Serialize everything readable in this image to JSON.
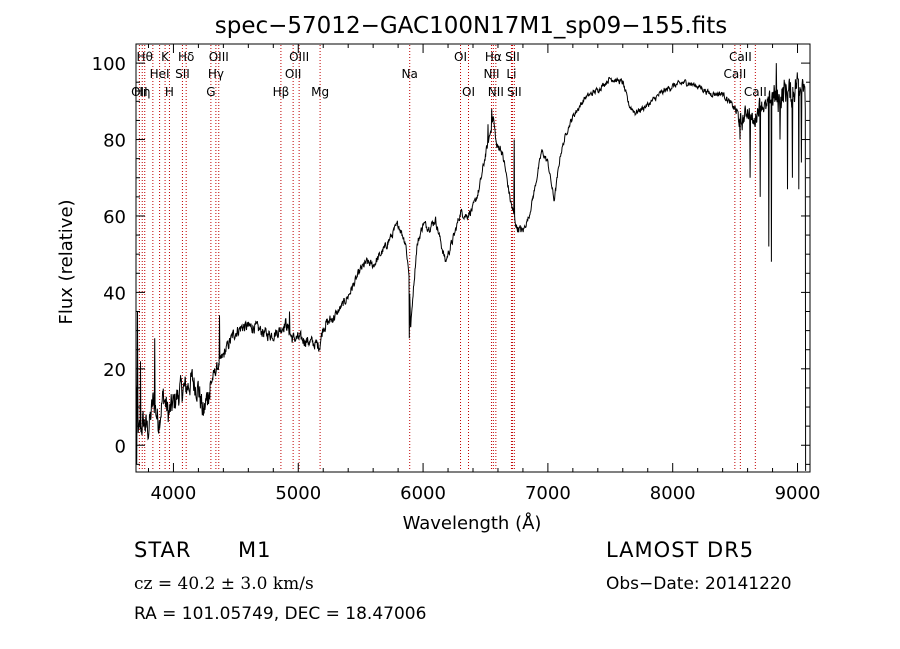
{
  "chart_data": {
    "type": "line",
    "title": "spec−57012−GAC100N17M1_sp09−155.fits",
    "xlabel": "Wavelength (Å)",
    "ylabel": "Flux (relative)",
    "xlim": [
      3700,
      9100
    ],
    "ylim": [
      -7,
      105
    ],
    "xticks": [
      4000,
      5000,
      6000,
      7000,
      8000,
      9000
    ],
    "yticks": [
      0,
      20,
      40,
      60,
      80,
      100
    ],
    "grid": false,
    "line_color": "#000000",
    "marker_color": "#c00000",
    "spectrum_anchors": [
      [
        3700,
        15
      ],
      [
        3720,
        3
      ],
      [
        3760,
        6
      ],
      [
        3800,
        4
      ],
      [
        3840,
        12
      ],
      [
        3880,
        6
      ],
      [
        3920,
        13
      ],
      [
        3960,
        8
      ],
      [
        4000,
        11
      ],
      [
        4050,
        14
      ],
      [
        4100,
        15
      ],
      [
        4150,
        17
      ],
      [
        4200,
        15
      ],
      [
        4240,
        8
      ],
      [
        4280,
        14
      ],
      [
        4330,
        19
      ],
      [
        4380,
        22
      ],
      [
        4420,
        25
      ],
      [
        4480,
        29
      ],
      [
        4550,
        31
      ],
      [
        4650,
        31
      ],
      [
        4750,
        29
      ],
      [
        4800,
        29
      ],
      [
        4850,
        30
      ],
      [
        4900,
        32
      ],
      [
        4950,
        28
      ],
      [
        5000,
        28
      ],
      [
        5100,
        27
      ],
      [
        5170,
        26
      ],
      [
        5200,
        31
      ],
      [
        5300,
        34
      ],
      [
        5400,
        39
      ],
      [
        5500,
        46
      ],
      [
        5550,
        48
      ],
      [
        5600,
        47
      ],
      [
        5700,
        52
      ],
      [
        5800,
        58
      ],
      [
        5860,
        53
      ],
      [
        5890,
        44
      ],
      [
        5900,
        30
      ],
      [
        5920,
        40
      ],
      [
        5950,
        52
      ],
      [
        6000,
        58
      ],
      [
        6050,
        57
      ],
      [
        6100,
        59
      ],
      [
        6150,
        52
      ],
      [
        6180,
        48
      ],
      [
        6200,
        50
      ],
      [
        6250,
        55
      ],
      [
        6300,
        61
      ],
      [
        6350,
        60
      ],
      [
        6400,
        62
      ],
      [
        6450,
        67
      ],
      [
        6500,
        76
      ],
      [
        6540,
        82
      ],
      [
        6562,
        86
      ],
      [
        6590,
        78
      ],
      [
        6620,
        78
      ],
      [
        6650,
        74
      ],
      [
        6700,
        64
      ],
      [
        6750,
        57
      ],
      [
        6800,
        56
      ],
      [
        6850,
        60
      ],
      [
        6900,
        68
      ],
      [
        6950,
        77
      ],
      [
        7000,
        74
      ],
      [
        7050,
        64
      ],
      [
        7100,
        76
      ],
      [
        7150,
        82
      ],
      [
        7200,
        86
      ],
      [
        7300,
        91
      ],
      [
        7400,
        93
      ],
      [
        7500,
        96
      ],
      [
        7600,
        95
      ],
      [
        7650,
        89
      ],
      [
        7700,
        87
      ],
      [
        7800,
        89
      ],
      [
        7900,
        92
      ],
      [
        8000,
        94
      ],
      [
        8100,
        95
      ],
      [
        8200,
        94
      ],
      [
        8300,
        92
      ],
      [
        8400,
        92
      ],
      [
        8450,
        90
      ],
      [
        8500,
        88
      ],
      [
        8550,
        84
      ],
      [
        8600,
        88
      ],
      [
        8650,
        84
      ],
      [
        8700,
        90
      ],
      [
        8750,
        88
      ],
      [
        8800,
        92
      ],
      [
        8850,
        90
      ],
      [
        8900,
        93
      ],
      [
        8950,
        92
      ],
      [
        9000,
        95
      ],
      [
        9050,
        96
      ]
    ],
    "spikes": [
      [
        3705,
        -5
      ],
      [
        3712,
        35
      ],
      [
        3735,
        22
      ],
      [
        3850,
        28
      ],
      [
        4290,
        12
      ],
      [
        4370,
        34
      ],
      [
        4930,
        35
      ],
      [
        5890,
        28
      ],
      [
        6520,
        84
      ],
      [
        6550,
        88
      ],
      [
        6730,
        80
      ],
      [
        8540,
        80
      ],
      [
        8620,
        70
      ],
      [
        8700,
        65
      ],
      [
        8770,
        52
      ],
      [
        8790,
        48
      ],
      [
        8830,
        100
      ],
      [
        8860,
        80
      ],
      [
        8920,
        67
      ],
      [
        8960,
        70
      ],
      [
        9010,
        67
      ],
      [
        9030,
        74
      ]
    ],
    "line_markers": [
      {
        "wavelength": 3727,
        "label": "OII",
        "row": 3
      },
      {
        "wavelength": 3750,
        "label": "Hη",
        "row": 3
      },
      {
        "wavelength": 3770,
        "label": "Hθ",
        "row": 1
      },
      {
        "wavelength": 3835,
        "label": "",
        "row": 0
      },
      {
        "wavelength": 3889,
        "label": "HeI",
        "row": 2
      },
      {
        "wavelength": 3933,
        "label": "K",
        "row": 1
      },
      {
        "wavelength": 3968,
        "label": "H",
        "row": 3
      },
      {
        "wavelength": 4072,
        "label": "SII",
        "row": 2
      },
      {
        "wavelength": 4102,
        "label": "Hδ",
        "row": 1
      },
      {
        "wavelength": 4300,
        "label": "G",
        "row": 3
      },
      {
        "wavelength": 4340,
        "label": "Hγ",
        "row": 2
      },
      {
        "wavelength": 4363,
        "label": "OIII",
        "row": 1
      },
      {
        "wavelength": 4861,
        "label": "Hβ",
        "row": 3
      },
      {
        "wavelength": 4959,
        "label": "OII",
        "row": 2
      },
      {
        "wavelength": 5007,
        "label": "OIII",
        "row": 1
      },
      {
        "wavelength": 5175,
        "label": "Mg",
        "row": 3
      },
      {
        "wavelength": 5893,
        "label": "Na",
        "row": 2
      },
      {
        "wavelength": 6300,
        "label": "OI",
        "row": 1
      },
      {
        "wavelength": 6364,
        "label": "OI",
        "row": 3
      },
      {
        "wavelength": 6548,
        "label": "NII",
        "row": 2
      },
      {
        "wavelength": 6563,
        "label": "Hα",
        "row": 1
      },
      {
        "wavelength": 6583,
        "label": "NII",
        "row": 3
      },
      {
        "wavelength": 6708,
        "label": "Li",
        "row": 2
      },
      {
        "wavelength": 6716,
        "label": "SII",
        "row": 1
      },
      {
        "wavelength": 6731,
        "label": "SII",
        "row": 3
      },
      {
        "wavelength": 8498,
        "label": "CaII",
        "row": 2
      },
      {
        "wavelength": 8542,
        "label": "CaII",
        "row": 1
      },
      {
        "wavelength": 8662,
        "label": "CaII",
        "row": 3
      }
    ]
  },
  "info": {
    "obj_class": "STAR",
    "subclass": "M1",
    "cz": "cz = 40.2 ± 3.0 km/s",
    "radec": "RA = 101.05749, DEC =  18.47006",
    "survey": "LAMOST DR5",
    "obs_date": "Obs−Date: 20141220"
  }
}
